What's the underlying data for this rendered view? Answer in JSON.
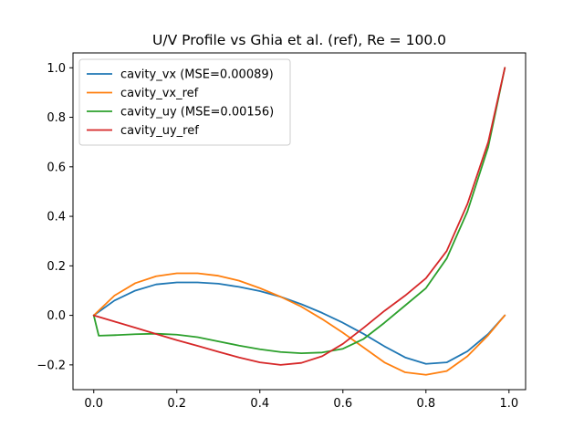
{
  "chart_data": {
    "type": "line",
    "title": "U/V Profile vs Ghia et al. (ref), Re = 100.0",
    "xlabel": "",
    "ylabel": "",
    "xlim": [
      -0.05,
      1.04
    ],
    "ylim": [
      -0.3,
      1.06
    ],
    "xticks": [
      0.0,
      0.2,
      0.4,
      0.6,
      0.8,
      1.0
    ],
    "xtick_labels": [
      "0.0",
      "0.2",
      "0.4",
      "0.6",
      "0.8",
      "1.0"
    ],
    "yticks": [
      -0.2,
      0.0,
      0.2,
      0.4,
      0.6,
      0.8,
      1.0
    ],
    "ytick_labels": [
      "−0.2",
      "0.0",
      "0.2",
      "0.4",
      "0.6",
      "0.8",
      "1.0"
    ],
    "grid": false,
    "legend_position": "upper-left",
    "series": [
      {
        "name": "cavity_vx (MSE=0.00089)",
        "color": "#1f77b4",
        "x": [
          0.0,
          0.05,
          0.1,
          0.15,
          0.2,
          0.25,
          0.3,
          0.35,
          0.4,
          0.45,
          0.5,
          0.55,
          0.6,
          0.65,
          0.7,
          0.75,
          0.8,
          0.85,
          0.9,
          0.95,
          0.99
        ],
        "y": [
          0.0,
          0.06,
          0.1,
          0.125,
          0.133,
          0.133,
          0.128,
          0.115,
          0.098,
          0.075,
          0.045,
          0.01,
          -0.03,
          -0.075,
          -0.125,
          -0.17,
          -0.196,
          -0.19,
          -0.145,
          -0.075,
          0.0
        ]
      },
      {
        "name": "cavity_vx_ref",
        "color": "#ff7f0e",
        "x": [
          0.0,
          0.05,
          0.1,
          0.15,
          0.2,
          0.25,
          0.3,
          0.35,
          0.4,
          0.45,
          0.5,
          0.55,
          0.6,
          0.65,
          0.7,
          0.75,
          0.8,
          0.85,
          0.9,
          0.95,
          0.99
        ],
        "y": [
          0.0,
          0.08,
          0.13,
          0.158,
          0.17,
          0.17,
          0.16,
          0.14,
          0.11,
          0.075,
          0.035,
          -0.015,
          -0.07,
          -0.13,
          -0.19,
          -0.23,
          -0.24,
          -0.225,
          -0.165,
          -0.08,
          0.0
        ]
      },
      {
        "name": "cavity_uy (MSE=0.00156)",
        "color": "#2ca02c",
        "x": [
          0.0,
          0.012,
          0.05,
          0.1,
          0.15,
          0.2,
          0.25,
          0.3,
          0.35,
          0.4,
          0.45,
          0.5,
          0.55,
          0.6,
          0.65,
          0.7,
          0.75,
          0.8,
          0.85,
          0.9,
          0.95,
          0.99
        ],
        "y": [
          0.0,
          -0.082,
          -0.08,
          -0.076,
          -0.074,
          -0.078,
          -0.088,
          -0.105,
          -0.122,
          -0.137,
          -0.148,
          -0.153,
          -0.15,
          -0.135,
          -0.095,
          -0.03,
          0.04,
          0.11,
          0.23,
          0.42,
          0.68,
          1.0
        ]
      },
      {
        "name": "cavity_uy_ref",
        "color": "#d62728",
        "x": [
          0.0,
          0.05,
          0.1,
          0.15,
          0.2,
          0.25,
          0.3,
          0.35,
          0.4,
          0.45,
          0.5,
          0.55,
          0.6,
          0.65,
          0.7,
          0.75,
          0.8,
          0.85,
          0.9,
          0.95,
          0.99
        ],
        "y": [
          0.0,
          -0.025,
          -0.05,
          -0.075,
          -0.1,
          -0.123,
          -0.147,
          -0.17,
          -0.19,
          -0.2,
          -0.192,
          -0.165,
          -0.115,
          -0.05,
          0.018,
          0.08,
          0.15,
          0.26,
          0.45,
          0.7,
          1.0
        ]
      }
    ]
  }
}
